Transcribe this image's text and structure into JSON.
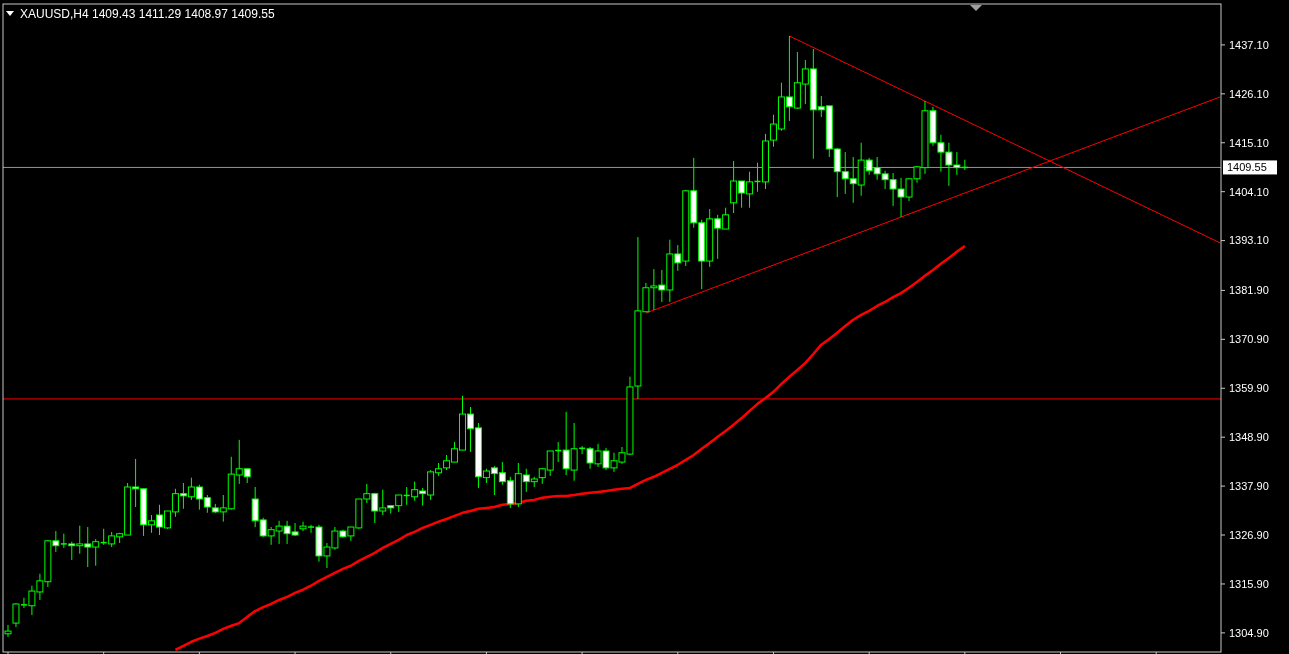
{
  "chart_data": {
    "type": "candlestick",
    "title": "XAUUSD,H4  1409.43 1411.29 1408.97 1409.55",
    "color": "#00ff00",
    "tick_labels": "y",
    "categories": [
      null,
      null,
      null,
      null,
      null,
      null,
      null,
      null,
      null,
      null,
      null,
      null,
      null,
      null,
      null,
      null,
      null,
      null,
      null,
      null,
      null,
      null,
      null,
      null,
      null,
      null,
      null,
      null,
      null,
      null,
      null,
      null,
      null,
      null,
      null,
      null,
      null,
      null,
      null,
      null,
      null,
      null,
      null,
      null,
      null,
      null,
      null,
      null,
      null,
      null,
      null,
      null,
      null,
      null,
      null,
      null,
      null,
      null,
      null,
      null,
      null,
      null,
      null,
      null,
      null,
      null,
      null,
      null,
      null,
      null,
      null,
      null,
      null,
      null,
      null,
      null,
      null,
      null,
      null,
      null,
      null,
      null,
      null,
      null,
      null,
      null,
      null,
      null,
      null,
      null,
      null,
      null,
      null,
      null,
      null,
      null,
      null,
      null,
      null,
      null,
      null,
      null,
      null,
      null,
      null,
      null,
      null,
      null,
      null,
      null,
      null,
      null,
      null,
      null,
      null,
      null,
      null,
      null,
      null,
      null,
      null,
      null,
      null,
      null,
      null,
      null,
      null,
      null,
      null,
      null,
      null,
      null,
      null,
      null,
      null,
      null,
      null,
      null,
      null,
      null,
      null,
      null,
      null,
      null,
      null,
      null,
      null,
      null,
      null,
      null,
      null,
      null,
      null
    ],
    "ohlc": [
      [
        1304.7,
        1306.7,
        1304.0,
        1305.3
      ],
      [
        1307.1,
        1311.6,
        1306.2,
        1311.4
      ],
      [
        1311.2,
        1312.8,
        1310.5,
        1311.2
      ],
      [
        1311.0,
        1315.5,
        1308.9,
        1314.3
      ],
      [
        1314.1,
        1318.2,
        1312.3,
        1316.6
      ],
      [
        1316.4,
        1325.8,
        1315.2,
        1325.6
      ],
      [
        1325.6,
        1327.8,
        1323.1,
        1324.5
      ],
      [
        1324.9,
        1327.2,
        1324.0,
        1324.9
      ],
      [
        1324.9,
        1325.4,
        1321.3,
        1324.5
      ],
      [
        1324.5,
        1329.0,
        1322.7,
        1324.9
      ],
      [
        1324.9,
        1328.7,
        1319.7,
        1324.2
      ],
      [
        1324.2,
        1326.0,
        1320.0,
        1325.4
      ],
      [
        1325.1,
        1328.3,
        1324.7,
        1325.2
      ],
      [
        1324.9,
        1327.6,
        1324.2,
        1326.7
      ],
      [
        1326.5,
        1327.4,
        1325.1,
        1327.2
      ],
      [
        1326.9,
        1338.6,
        1326.9,
        1337.7
      ],
      [
        1337.7,
        1344.0,
        1333.2,
        1337.3
      ],
      [
        1337.3,
        1337.3,
        1326.7,
        1329.2
      ],
      [
        1329.2,
        1331.4,
        1327.4,
        1330.1
      ],
      [
        1331.4,
        1333.7,
        1326.9,
        1328.7
      ],
      [
        1328.5,
        1332.3,
        1328.3,
        1332.3
      ],
      [
        1332.1,
        1337.3,
        1331.0,
        1336.2
      ],
      [
        1336.2,
        1338.6,
        1332.8,
        1335.7
      ],
      [
        1335.5,
        1339.8,
        1334.8,
        1337.7
      ],
      [
        1337.7,
        1338.2,
        1332.6,
        1335.0
      ],
      [
        1335.3,
        1335.9,
        1331.9,
        1333.2
      ],
      [
        1333.0,
        1333.9,
        1331.9,
        1332.1
      ],
      [
        1332.1,
        1335.9,
        1329.9,
        1333.0
      ],
      [
        1332.8,
        1344.5,
        1332.6,
        1340.6
      ],
      [
        1340.4,
        1348.3,
        1338.4,
        1341.8
      ],
      [
        1341.8,
        1341.8,
        1338.6,
        1340.0
      ],
      [
        1335.0,
        1337.7,
        1328.7,
        1330.1
      ],
      [
        1330.3,
        1330.8,
        1326.5,
        1326.7
      ],
      [
        1326.7,
        1328.7,
        1324.7,
        1328.1
      ],
      [
        1327.8,
        1330.1,
        1324.9,
        1328.9
      ],
      [
        1328.9,
        1330.1,
        1324.9,
        1327.2
      ],
      [
        1327.6,
        1329.6,
        1326.7,
        1326.9
      ],
      [
        1328.3,
        1329.9,
        1327.8,
        1328.9
      ],
      [
        1328.7,
        1329.2,
        1327.4,
        1328.7
      ],
      [
        1328.7,
        1329.2,
        1320.9,
        1322.2
      ],
      [
        1322.2,
        1325.1,
        1319.5,
        1324.2
      ],
      [
        1324.0,
        1328.7,
        1323.6,
        1327.8
      ],
      [
        1327.8,
        1328.1,
        1326.3,
        1326.5
      ],
      [
        1326.7,
        1328.7,
        1325.6,
        1328.7
      ],
      [
        1328.5,
        1335.0,
        1328.3,
        1335.0
      ],
      [
        1335.0,
        1338.4,
        1334.1,
        1336.2
      ],
      [
        1336.2,
        1336.4,
        1329.6,
        1332.3
      ],
      [
        1332.3,
        1337.1,
        1331.4,
        1333.0
      ],
      [
        1333.5,
        1333.5,
        1331.7,
        1333.0
      ],
      [
        1333.5,
        1335.9,
        1332.1,
        1335.9
      ],
      [
        1335.6,
        1337.7,
        1333.7,
        1335.8
      ],
      [
        1335.5,
        1338.9,
        1334.6,
        1337.1
      ],
      [
        1336.8,
        1337.5,
        1333.5,
        1336.2
      ],
      [
        1335.9,
        1341.5,
        1334.8,
        1341.1
      ],
      [
        1340.9,
        1343.1,
        1340.2,
        1341.8
      ],
      [
        1342.0,
        1344.9,
        1341.5,
        1343.6
      ],
      [
        1343.3,
        1347.8,
        1343.3,
        1346.3
      ],
      [
        1346.0,
        1358.2,
        1346.0,
        1354.1
      ],
      [
        1354.1,
        1355.7,
        1345.6,
        1350.8
      ],
      [
        1351.0,
        1352.1,
        1337.5,
        1340.0
      ],
      [
        1339.8,
        1341.8,
        1338.6,
        1341.3
      ],
      [
        1342.0,
        1342.4,
        1335.9,
        1340.7
      ],
      [
        1340.9,
        1343.3,
        1338.2,
        1338.9
      ],
      [
        1339.1,
        1340.0,
        1333.0,
        1333.9
      ],
      [
        1333.9,
        1343.1,
        1333.2,
        1340.7
      ],
      [
        1340.4,
        1341.8,
        1336.6,
        1338.9
      ],
      [
        1338.9,
        1340.0,
        1337.7,
        1339.5
      ],
      [
        1339.8,
        1342.0,
        1338.4,
        1341.8
      ],
      [
        1341.5,
        1345.8,
        1340.2,
        1345.8
      ],
      [
        1345.7,
        1347.8,
        1343.3,
        1345.9
      ],
      [
        1346.0,
        1354.6,
        1340.4,
        1341.8
      ],
      [
        1341.5,
        1352.1,
        1339.1,
        1346.3
      ],
      [
        1346.2,
        1346.9,
        1345.1,
        1346.4
      ],
      [
        1346.3,
        1346.7,
        1341.8,
        1343.1
      ],
      [
        1342.9,
        1347.4,
        1342.2,
        1345.8
      ],
      [
        1345.8,
        1346.5,
        1341.5,
        1342.0
      ],
      [
        1342.0,
        1345.4,
        1341.1,
        1343.6
      ],
      [
        1343.3,
        1346.7,
        1342.9,
        1345.4
      ],
      [
        1345.1,
        1362.5,
        1344.9,
        1360.2
      ],
      [
        1360.4,
        1393.9,
        1357.5,
        1377.3
      ],
      [
        1377.1,
        1383.6,
        1377.1,
        1382.5
      ],
      [
        1382.5,
        1386.7,
        1377.5,
        1382.9
      ],
      [
        1383.1,
        1386.5,
        1379.3,
        1382.0
      ],
      [
        1382.0,
        1393.3,
        1379.3,
        1390.1
      ],
      [
        1390.1,
        1392.1,
        1386.3,
        1388.1
      ],
      [
        1388.5,
        1404.5,
        1387.4,
        1404.3
      ],
      [
        1404.3,
        1411.7,
        1396.0,
        1397.1
      ],
      [
        1397.1,
        1397.8,
        1382.2,
        1388.5
      ],
      [
        1388.5,
        1400.2,
        1387.2,
        1398.0
      ],
      [
        1398.0,
        1398.9,
        1389.0,
        1395.9
      ],
      [
        1395.7,
        1400.5,
        1395.7,
        1398.9
      ],
      [
        1401.6,
        1411.0,
        1399.3,
        1406.5
      ],
      [
        1406.5,
        1406.5,
        1400.5,
        1403.8
      ],
      [
        1403.6,
        1408.6,
        1400.5,
        1406.3
      ],
      [
        1406.2,
        1410.6,
        1404.1,
        1406.4
      ],
      [
        1406.3,
        1417.1,
        1404.7,
        1415.5
      ],
      [
        1415.7,
        1421.4,
        1414.2,
        1419.3
      ],
      [
        1418.2,
        1428.6,
        1417.8,
        1425.4
      ],
      [
        1425.4,
        1439.1,
        1420.0,
        1423.2
      ],
      [
        1422.9,
        1435.5,
        1422.7,
        1428.6
      ],
      [
        1428.3,
        1433.7,
        1423.8,
        1431.7
      ],
      [
        1431.7,
        1436.2,
        1411.5,
        1422.5
      ],
      [
        1423.2,
        1425.6,
        1420.9,
        1422.5
      ],
      [
        1423.4,
        1423.4,
        1411.9,
        1413.7
      ],
      [
        1413.7,
        1413.9,
        1402.9,
        1408.6
      ],
      [
        1408.6,
        1413.0,
        1403.6,
        1407.0
      ],
      [
        1407.0,
        1411.9,
        1401.6,
        1405.9
      ],
      [
        1405.6,
        1415.1,
        1403.2,
        1411.2
      ],
      [
        1411.2,
        1411.7,
        1407.9,
        1408.8
      ],
      [
        1409.5,
        1411.9,
        1406.8,
        1408.1
      ],
      [
        1408.1,
        1408.8,
        1404.7,
        1406.8
      ],
      [
        1406.8,
        1408.3,
        1400.9,
        1404.7
      ],
      [
        1404.7,
        1407.2,
        1398.4,
        1402.9
      ],
      [
        1402.9,
        1407.0,
        1402.0,
        1407.0
      ],
      [
        1407.0,
        1409.9,
        1406.1,
        1409.7
      ],
      [
        1409.5,
        1424.5,
        1408.1,
        1422.3
      ],
      [
        1422.3,
        1423.2,
        1414.4,
        1415.1
      ],
      [
        1415.1,
        1416.9,
        1408.6,
        1413.0
      ],
      [
        1413.0,
        1415.1,
        1405.4,
        1410.1
      ],
      [
        1410.1,
        1413.0,
        1407.9,
        1409.5
      ],
      [
        1409.43,
        1411.29,
        1408.97,
        1409.55
      ],
      null,
      null,
      null,
      null,
      null,
      null,
      null,
      null,
      null,
      null,
      null,
      null,
      null,
      null,
      null,
      null,
      null,
      null,
      null,
      null,
      null,
      null,
      null,
      null,
      null,
      null,
      null,
      null,
      null,
      null,
      null,
      null
    ],
    "series": [
      {
        "type": "line",
        "color": "#ff0000",
        "values": [
          null,
          null,
          null,
          null,
          null,
          null,
          null,
          null,
          null,
          null,
          null,
          null,
          null,
          null,
          null,
          null,
          null,
          null,
          null,
          null,
          null,
          1301.1,
          1302.0,
          1302.9,
          1303.6,
          1304.2,
          1304.9,
          1305.8,
          1306.5,
          1307.1,
          1308.5,
          1309.8,
          1310.7,
          1311.4,
          1312.3,
          1313.0,
          1313.9,
          1314.6,
          1315.5,
          1316.6,
          1317.5,
          1318.4,
          1319.3,
          1320.0,
          1321.1,
          1322.0,
          1322.9,
          1324.0,
          1324.9,
          1325.8,
          1326.9,
          1327.6,
          1328.5,
          1329.2,
          1329.9,
          1330.5,
          1331.2,
          1331.9,
          1332.3,
          1332.8,
          1333.0,
          1333.2,
          1333.7,
          1333.9,
          1334.1,
          1334.6,
          1334.8,
          1335.3,
          1335.5,
          1335.7,
          1335.7,
          1335.9,
          1336.2,
          1336.4,
          1336.6,
          1336.8,
          1337.1,
          1337.3,
          1337.5,
          1338.4,
          1339.3,
          1340.0,
          1340.9,
          1341.8,
          1342.7,
          1343.8,
          1344.9,
          1346.3,
          1347.6,
          1349.0,
          1350.3,
          1351.7,
          1353.2,
          1354.8,
          1356.4,
          1357.7,
          1359.1,
          1360.9,
          1362.5,
          1364.0,
          1365.6,
          1367.6,
          1369.7,
          1371.0,
          1372.4,
          1373.9,
          1375.3,
          1376.4,
          1377.3,
          1378.4,
          1379.3,
          1380.4,
          1381.3,
          1382.5,
          1383.8,
          1385.2,
          1386.5,
          1387.9,
          1389.2,
          1390.6,
          1391.9,
          null,
          null,
          null,
          null,
          null,
          null,
          null,
          null,
          null,
          null,
          null,
          null,
          null,
          null,
          null,
          null,
          null,
          null,
          null,
          null,
          null,
          null,
          null,
          null,
          null,
          null,
          null,
          null,
          null,
          null,
          null,
          null
        ]
      },
      {
        "type": "line",
        "color": "#ff0000",
        "values": [
          null,
          null,
          null,
          null,
          null,
          null,
          null,
          null,
          null,
          null,
          null,
          null,
          null,
          null,
          null,
          null,
          null,
          null,
          null,
          null,
          null,
          null,
          null,
          null,
          null,
          null,
          null,
          null,
          null,
          null,
          null,
          null,
          null,
          null,
          null,
          null,
          null,
          null,
          null,
          null,
          null,
          null,
          null,
          null,
          null,
          null,
          null,
          null,
          null,
          null,
          null,
          null,
          null,
          null,
          null,
          null,
          null,
          null,
          null,
          null,
          null,
          null,
          null,
          null,
          null,
          null,
          null,
          null,
          null,
          null,
          null,
          null,
          null,
          null,
          null,
          null,
          null,
          null,
          null,
          null,
          1376.8,
          null,
          null,
          null,
          null,
          null,
          null,
          null,
          null,
          null,
          null,
          null,
          null,
          null,
          null,
          null,
          null,
          null,
          null,
          null,
          null,
          null,
          null,
          null,
          null,
          null,
          null,
          null,
          null,
          null,
          null,
          null,
          null,
          null,
          null,
          null,
          null,
          null,
          null,
          null,
          null,
          null,
          null,
          null,
          null,
          null,
          null,
          null,
          null,
          null,
          null,
          null,
          null,
          null,
          null,
          null,
          null,
          null,
          null,
          null,
          null,
          null,
          null,
          null,
          null,
          null,
          null,
          null,
          null,
          null,
          null,
          null,
          1425.4
        ]
      },
      {
        "type": "line",
        "color": "#ff0000",
        "values": [
          null,
          null,
          null,
          null,
          null,
          null,
          null,
          null,
          null,
          null,
          null,
          null,
          null,
          null,
          null,
          null,
          null,
          null,
          null,
          null,
          null,
          null,
          null,
          null,
          null,
          null,
          null,
          null,
          null,
          null,
          null,
          null,
          null,
          null,
          null,
          null,
          null,
          null,
          null,
          null,
          null,
          null,
          null,
          null,
          null,
          null,
          null,
          null,
          null,
          null,
          null,
          null,
          null,
          null,
          null,
          null,
          null,
          null,
          null,
          null,
          null,
          null,
          null,
          null,
          null,
          null,
          null,
          null,
          null,
          null,
          null,
          null,
          null,
          null,
          null,
          null,
          null,
          null,
          null,
          null,
          null,
          null,
          null,
          null,
          null,
          null,
          null,
          null,
          null,
          null,
          null,
          null,
          null,
          null,
          null,
          null,
          null,
          null,
          1439.1,
          null,
          null,
          null,
          null,
          null,
          null,
          null,
          null,
          null,
          null,
          null,
          null,
          null,
          null,
          null,
          null,
          null,
          null,
          null,
          null,
          null,
          null,
          null,
          null,
          null,
          null,
          null,
          null,
          null,
          null,
          null,
          null,
          null,
          null,
          null,
          null,
          null,
          null,
          null,
          null,
          null,
          null,
          null,
          null,
          null,
          null,
          null,
          null,
          null,
          null,
          null,
          null,
          null,
          1392.6
        ]
      }
    ],
    "ref_lines": [
      {
        "axis": "y",
        "value": 1357.5,
        "color": "#ff0000"
      },
      {
        "axis": "y",
        "value": 1409.55,
        "label": "1409.55",
        "color": "#8c96a0"
      }
    ],
    "ylim": [
      1300.6,
      1446.3
    ],
    "yticks": [
      {
        "value": 1304.9,
        "label": "1304.90"
      },
      {
        "value": 1315.9,
        "label": "1315.90"
      },
      {
        "value": 1326.9,
        "label": "1326.90"
      },
      {
        "value": 1337.9,
        "label": "1337.90"
      },
      {
        "value": 1348.9,
        "label": "1348.90"
      },
      {
        "value": 1359.9,
        "label": "1359.90"
      },
      {
        "value": 1370.9,
        "label": "1370.90"
      },
      {
        "value": 1381.9,
        "label": "1381.90"
      },
      {
        "value": 1393.1,
        "label": "1393.10"
      },
      {
        "value": 1404.1,
        "label": "1404.10"
      },
      {
        "value": 1415.1,
        "label": "1415.10"
      },
      {
        "value": 1426.1,
        "label": "1426.10"
      },
      {
        "value": 1437.1,
        "label": "1437.10"
      }
    ]
  }
}
